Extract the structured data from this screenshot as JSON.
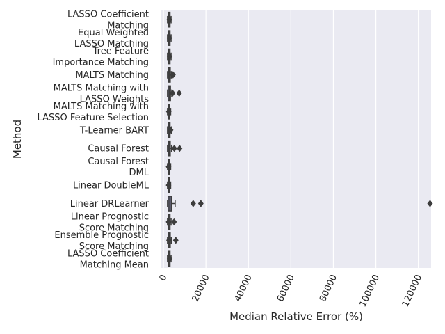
{
  "chart_data": {
    "type": "box",
    "orientation": "horizontal",
    "xlabel": "Median Relative Error (%)",
    "ylabel": "Method",
    "xlim": [
      -1000,
      126000
    ],
    "x_ticks": [
      0,
      20000,
      40000,
      60000,
      80000,
      100000,
      120000
    ],
    "x_tick_rotation": 65,
    "grid": true,
    "categories": [
      "LASSO Coefficient\nMatching",
      "Equal Weighted\nLASSO Matching",
      "Tree Feature\nImportance Matching",
      "MALTS Matching",
      "MALTS Matching with\nLASSO Weights",
      "MALTS Matching with\nLASSO Feature Selection",
      "T-Learner BART",
      "Causal Forest",
      "Causal Forest\nDML",
      "Linear DoubleML",
      "Linear DRLearner",
      "Linear Prognostic\nScore Matching",
      "Ensemble Prognostic\nScore Matching",
      "LASSO Coefficient\nMatching Mean"
    ],
    "boxes": [
      {
        "q1": 2200,
        "median": 2600,
        "q3": 3100,
        "whisker_low": 1900,
        "whisker_high": 3600,
        "outliers": [
          2800
        ]
      },
      {
        "q1": 2200,
        "median": 2600,
        "q3": 3100,
        "whisker_low": 1900,
        "whisker_high": 3600,
        "outliers": [
          2800
        ]
      },
      {
        "q1": 2200,
        "median": 2600,
        "q3": 3100,
        "whisker_low": 1900,
        "whisker_high": 3600,
        "outliers": [
          2900
        ]
      },
      {
        "q1": 2200,
        "median": 2700,
        "q3": 3200,
        "whisker_low": 1900,
        "whisker_high": 3700,
        "outliers": [
          4500
        ]
      },
      {
        "q1": 2200,
        "median": 2800,
        "q3": 3300,
        "whisker_low": 1900,
        "whisker_high": 3900,
        "outliers": [
          4300,
          7400
        ]
      },
      {
        "q1": 2200,
        "median": 2500,
        "q3": 2900,
        "whisker_low": 1900,
        "whisker_high": 3400,
        "outliers": [
          2500
        ]
      },
      {
        "q1": 2200,
        "median": 2700,
        "q3": 3100,
        "whisker_low": 1900,
        "whisker_high": 3800,
        "outliers": [
          3400
        ]
      },
      {
        "q1": 2200,
        "median": 2700,
        "q3": 3200,
        "whisker_low": 1900,
        "whisker_high": 3800,
        "outliers": [
          5100,
          7600
        ]
      },
      {
        "q1": 2200,
        "median": 2500,
        "q3": 2900,
        "whisker_low": 1900,
        "whisker_high": 3400,
        "outliers": [
          2400
        ]
      },
      {
        "q1": 2200,
        "median": 2500,
        "q3": 2900,
        "whisker_low": 1900,
        "whisker_high": 3400,
        "outliers": [
          2400
        ]
      },
      {
        "q1": 2200,
        "median": 3000,
        "q3": 3800,
        "whisker_low": 1900,
        "whisker_high": 5500,
        "outliers": [
          14000,
          17600,
          125500
        ]
      },
      {
        "q1": 2200,
        "median": 2600,
        "q3": 3100,
        "whisker_low": 1900,
        "whisker_high": 3600,
        "outliers": [
          2400,
          5000
        ]
      },
      {
        "q1": 2200,
        "median": 2700,
        "q3": 3200,
        "whisker_low": 1900,
        "whisker_high": 3700,
        "outliers": [
          2600,
          5800
        ]
      },
      {
        "q1": 2200,
        "median": 2600,
        "q3": 3100,
        "whisker_low": 1900,
        "whisker_high": 3600,
        "outliers": [
          2900
        ]
      }
    ],
    "colors": {
      "plot_background": "#eaeaf2",
      "grid": "#ffffff",
      "box_fill": "#5e5e72",
      "line": "#3d3d3d",
      "outlier": "#3d3d3d"
    }
  }
}
